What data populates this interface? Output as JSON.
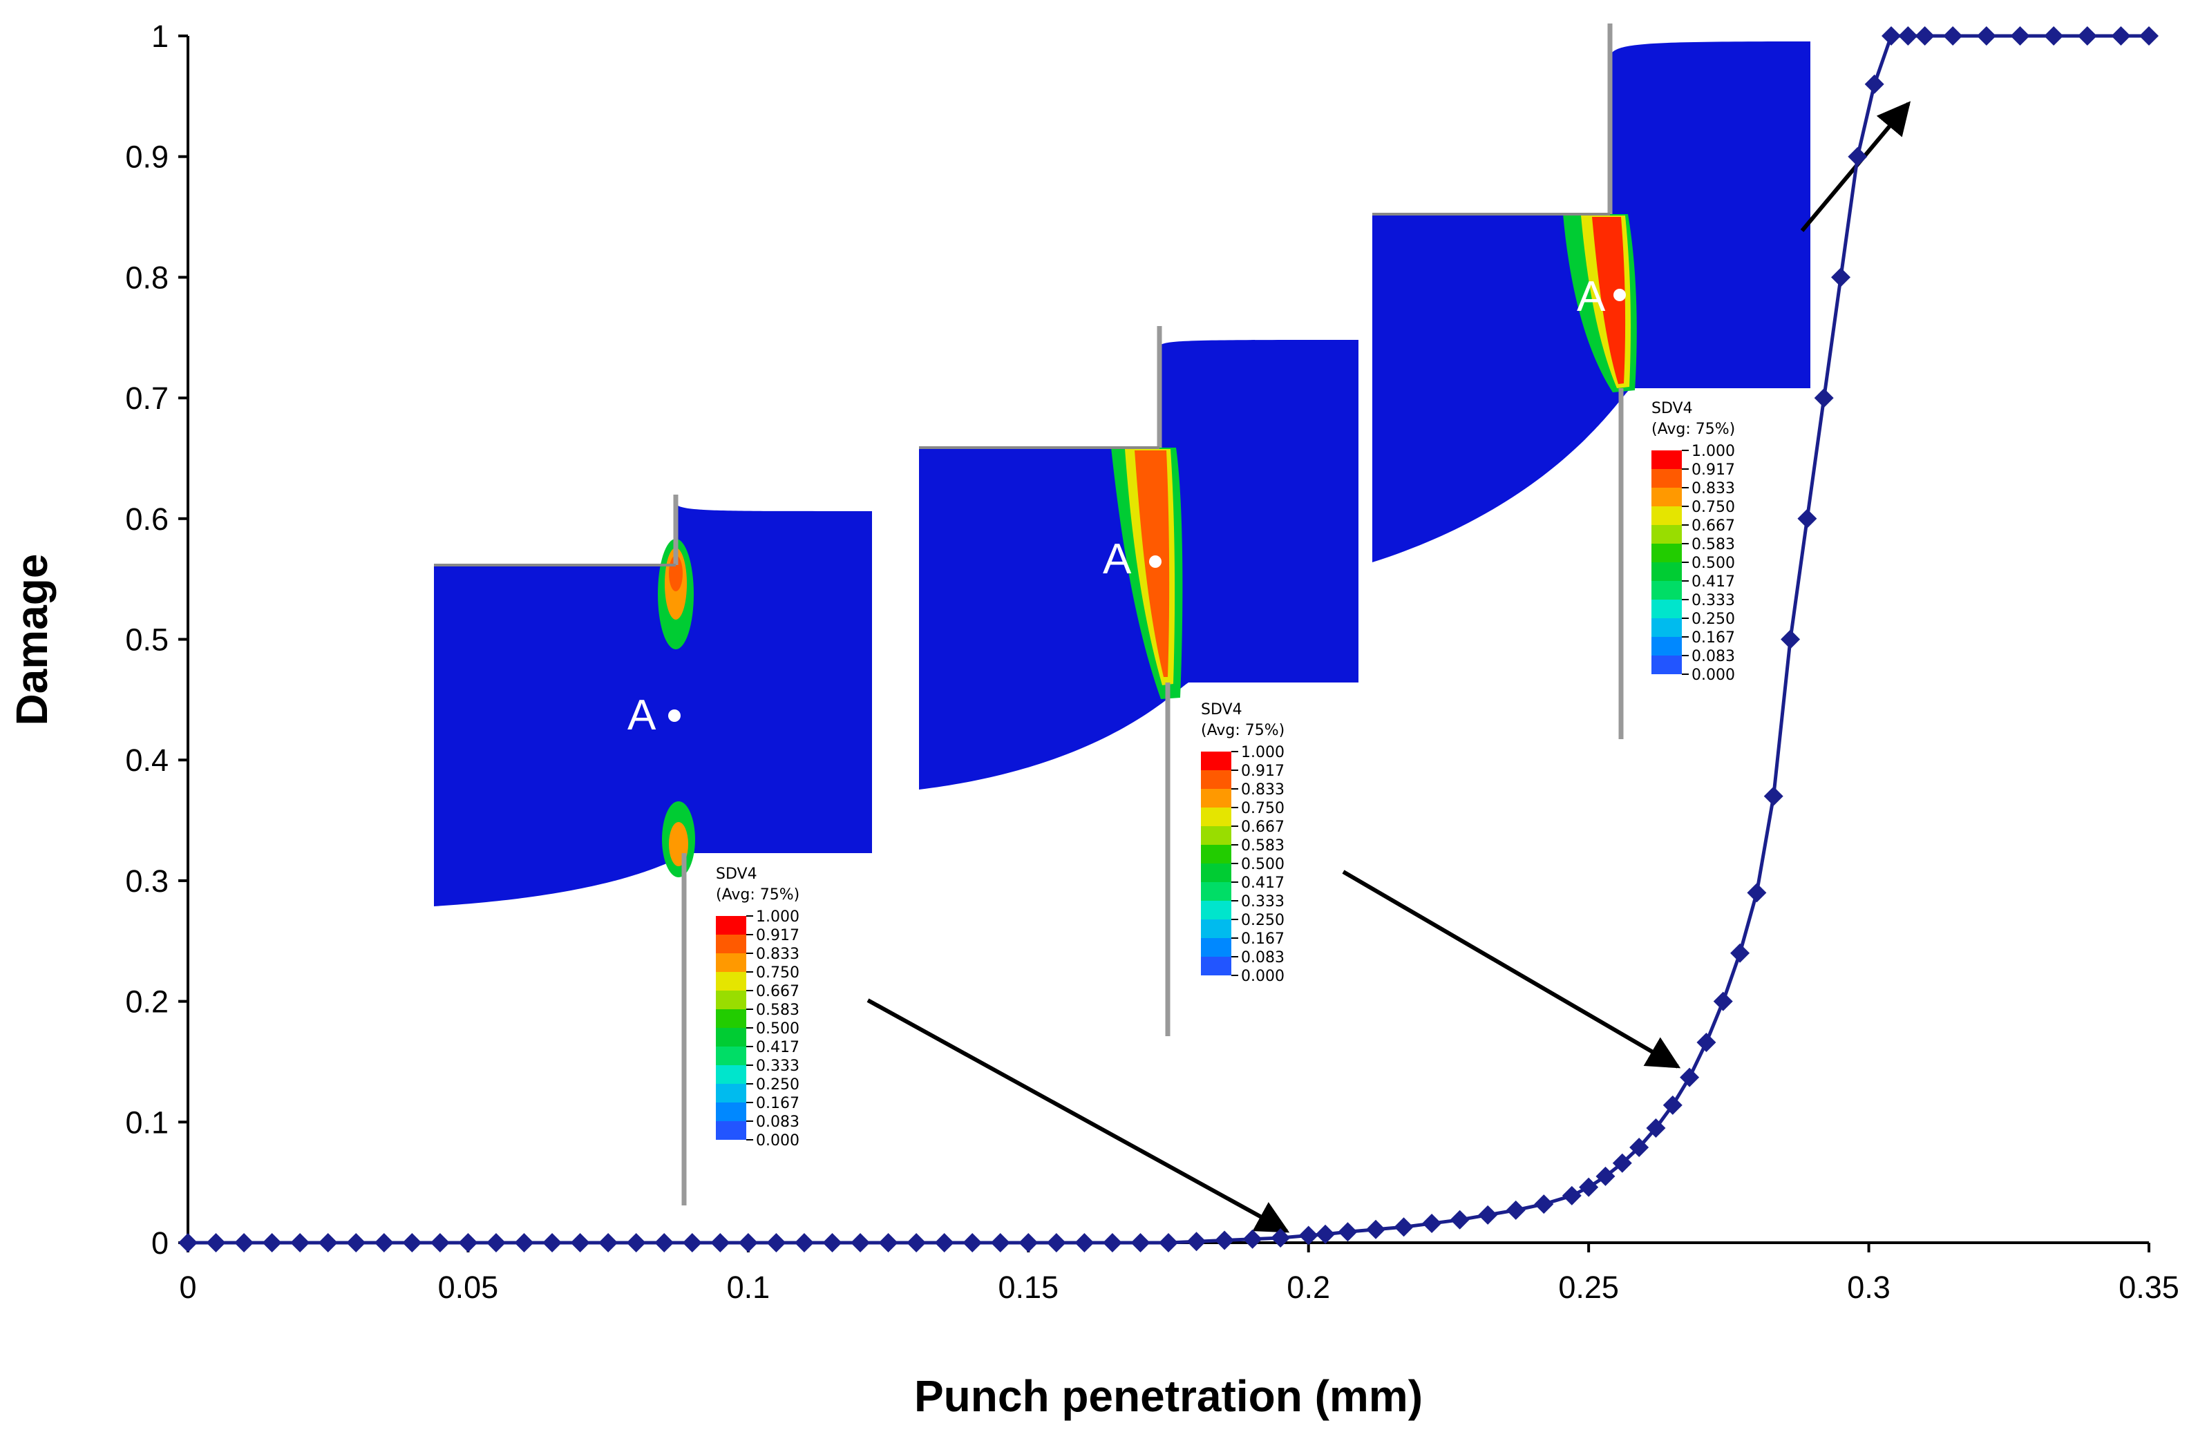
{
  "chart_data": {
    "type": "line",
    "xlabel": "Punch penetration (mm)",
    "ylabel": "Damage",
    "xlim": [
      0,
      0.35
    ],
    "ylim": [
      0,
      1
    ],
    "x_ticks": [
      "0",
      "0.05",
      "0.1",
      "0.15",
      "0.2",
      "0.25",
      "0.3",
      "0.35"
    ],
    "y_ticks": [
      "0",
      "0.1",
      "0.2",
      "0.3",
      "0.4",
      "0.5",
      "0.6",
      "0.7",
      "0.8",
      "0.9",
      "1"
    ],
    "grid": false,
    "legend": "none",
    "series": [
      {
        "color": "#1a1f8c",
        "marker": "diamond",
        "x": [
          0,
          0.005,
          0.01,
          0.015,
          0.02,
          0.025,
          0.03,
          0.035,
          0.04,
          0.045,
          0.05,
          0.055,
          0.06,
          0.065,
          0.07,
          0.075,
          0.08,
          0.085,
          0.09,
          0.095,
          0.1,
          0.105,
          0.11,
          0.115,
          0.12,
          0.125,
          0.13,
          0.135,
          0.14,
          0.145,
          0.15,
          0.155,
          0.16,
          0.165,
          0.17,
          0.175,
          0.18,
          0.185,
          0.19,
          0.195,
          0.2,
          0.203,
          0.207,
          0.212,
          0.217,
          0.222,
          0.227,
          0.232,
          0.237,
          0.242,
          0.247,
          0.25,
          0.253,
          0.256,
          0.259,
          0.262,
          0.265,
          0.268,
          0.271,
          0.274,
          0.277,
          0.28,
          0.283,
          0.286,
          0.289,
          0.292,
          0.295,
          0.298,
          0.301,
          0.304,
          0.307,
          0.31,
          0.315,
          0.321,
          0.327,
          0.333,
          0.339,
          0.345,
          0.35
        ],
        "y": [
          0,
          0,
          0,
          0,
          0,
          0,
          0,
          0,
          0,
          0,
          0,
          0,
          0,
          0,
          0,
          0,
          0,
          0,
          0,
          0,
          0,
          0,
          0,
          0,
          0,
          0,
          0,
          0,
          0,
          0,
          0,
          0,
          0,
          0,
          0,
          0,
          0.001,
          0.002,
          0.003,
          0.004,
          0.006,
          0.007,
          0.009,
          0.011,
          0.013,
          0.016,
          0.019,
          0.023,
          0.027,
          0.032,
          0.039,
          0.046,
          0.055,
          0.066,
          0.079,
          0.095,
          0.114,
          0.137,
          0.166,
          0.2,
          0.24,
          0.29,
          0.37,
          0.5,
          0.6,
          0.7,
          0.8,
          0.9,
          0.96,
          1.0,
          1.0,
          1.0,
          1.0,
          1.0,
          1.0,
          1.0,
          1.0,
          1.0,
          1.0
        ]
      }
    ]
  },
  "insets": [
    {
      "marker_label": "A",
      "legend_title": "SDV4",
      "legend_subtitle": "(Avg: 75%)",
      "legend_values": [
        "1.000",
        "0.917",
        "0.833",
        "0.750",
        "0.667",
        "0.583",
        "0.500",
        "0.417",
        "0.333",
        "0.250",
        "0.167",
        "0.083",
        "0.000"
      ],
      "arrow_to": [
        0.198,
        0.006
      ]
    },
    {
      "marker_label": "A",
      "legend_title": "SDV4",
      "legend_subtitle": "(Avg: 75%)",
      "legend_values": [
        "1.000",
        "0.917",
        "0.833",
        "0.750",
        "0.667",
        "0.583",
        "0.500",
        "0.417",
        "0.333",
        "0.250",
        "0.167",
        "0.083",
        "0.000"
      ],
      "arrow_to": [
        0.267,
        0.144
      ]
    },
    {
      "marker_label": "A",
      "legend_title": "SDV4",
      "legend_subtitle": "(Avg: 75%)",
      "legend_values": [
        "1.000",
        "0.917",
        "0.833",
        "0.750",
        "0.667",
        "0.583",
        "0.500",
        "0.417",
        "0.333",
        "0.250",
        "0.167",
        "0.083",
        "0.000"
      ],
      "arrow_to": [
        0.306,
        0.945
      ]
    }
  ],
  "colors": {
    "series": "#1a1f8c",
    "blank": "#0a14d8",
    "tool": "#999999",
    "contour": [
      "#ff0000",
      "#ff5a00",
      "#ff9900",
      "#e5e500",
      "#99dd00",
      "#22cc00",
      "#00cc33",
      "#00dd66",
      "#00e5cc",
      "#00bbee",
      "#0088ff",
      "#2255ff",
      "#0000ff"
    ]
  }
}
